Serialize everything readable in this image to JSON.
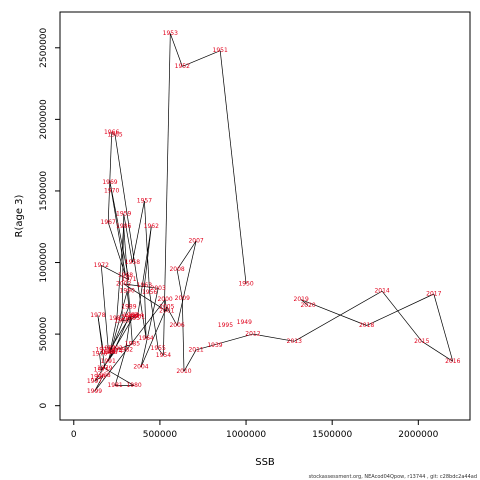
{
  "chart_data": {
    "type": "line",
    "title": "",
    "xlabel": "SSB",
    "ylabel": "R(age 3)",
    "xlim": [
      -80000,
      2300000
    ],
    "ylim": [
      -100000,
      2750000
    ],
    "x_ticks": [
      0,
      500000,
      1000000,
      1500000,
      2000000
    ],
    "x_tick_labels": [
      "0",
      "500000",
      "1000000",
      "1500000",
      "2000000"
    ],
    "y_ticks": [
      0,
      500000,
      1000000,
      1500000,
      2000000,
      2500000
    ],
    "y_tick_labels": [
      "0",
      "500000",
      "1000000",
      "1500000",
      "2000000",
      "2500000"
    ],
    "grid": false,
    "line_color": "#000000",
    "label_color": "#e0001b",
    "points": [
      {
        "year": "1950",
        "x": 1000000,
        "y": 850000
      },
      {
        "year": "1951",
        "x": 850000,
        "y": 2480000
      },
      {
        "year": "1952",
        "x": 630000,
        "y": 2370000
      },
      {
        "year": "1953",
        "x": 560000,
        "y": 2600000
      },
      {
        "year": "1954",
        "x": 520000,
        "y": 350000
      },
      {
        "year": "1955",
        "x": 490000,
        "y": 400000
      },
      {
        "year": "1956",
        "x": 440000,
        "y": 790000
      },
      {
        "year": "1957",
        "x": 410000,
        "y": 1430000
      },
      {
        "year": "1958",
        "x": 340000,
        "y": 1000000
      },
      {
        "year": "1959",
        "x": 290000,
        "y": 1340000
      },
      {
        "year": "1960",
        "x": 280000,
        "y": 590000
      },
      {
        "year": "1961",
        "x": 370000,
        "y": 620000
      },
      {
        "year": "1962",
        "x": 450000,
        "y": 1250000
      },
      {
        "year": "1963",
        "x": 410000,
        "y": 840000
      },
      {
        "year": "1964",
        "x": 420000,
        "y": 470000
      },
      {
        "year": "1965",
        "x": 240000,
        "y": 1890000
      },
      {
        "year": "1966",
        "x": 220000,
        "y": 1910000
      },
      {
        "year": "1967",
        "x": 200000,
        "y": 1280000
      },
      {
        "year": "1968",
        "x": 300000,
        "y": 910000
      },
      {
        "year": "1969",
        "x": 210000,
        "y": 1560000
      },
      {
        "year": "1970",
        "x": 220000,
        "y": 1500000
      },
      {
        "year": "1971",
        "x": 320000,
        "y": 880000
      },
      {
        "year": "1972",
        "x": 160000,
        "y": 980000
      },
      {
        "year": "1973",
        "x": 200000,
        "y": 400000
      },
      {
        "year": "1974",
        "x": 240000,
        "y": 380000
      },
      {
        "year": "1975",
        "x": 160000,
        "y": 250000
      },
      {
        "year": "1976",
        "x": 150000,
        "y": 360000
      },
      {
        "year": "1977",
        "x": 170000,
        "y": 390000
      },
      {
        "year": "1978",
        "x": 140000,
        "y": 630000
      },
      {
        "year": "1979",
        "x": 180000,
        "y": 260000
      },
      {
        "year": "1980",
        "x": 350000,
        "y": 140000
      },
      {
        "year": "1981",
        "x": 240000,
        "y": 140000
      },
      {
        "year": "1982",
        "x": 300000,
        "y": 390000
      },
      {
        "year": "1983",
        "x": 330000,
        "y": 630000
      },
      {
        "year": "1984",
        "x": 200000,
        "y": 370000
      },
      {
        "year": "1985",
        "x": 340000,
        "y": 430000
      },
      {
        "year": "1986",
        "x": 290000,
        "y": 1250000
      },
      {
        "year": "1987",
        "x": 250000,
        "y": 610000
      },
      {
        "year": "1988",
        "x": 210000,
        "y": 370000
      },
      {
        "year": "1989",
        "x": 320000,
        "y": 690000
      },
      {
        "year": "1990",
        "x": 310000,
        "y": 800000
      },
      {
        "year": "1991",
        "x": 200000,
        "y": 310000
      },
      {
        "year": "1992",
        "x": 240000,
        "y": 400000
      },
      {
        "year": "1993",
        "x": 320000,
        "y": 620000
      },
      {
        "year": "1994",
        "x": 360000,
        "y": 630000
      },
      {
        "year": "1995",
        "x": 340000,
        "y": 610000
      },
      {
        "year": "1996",
        "x": 140000,
        "y": 200000
      },
      {
        "year": "1997",
        "x": 120000,
        "y": 170000
      },
      {
        "year": "1998",
        "x": 170000,
        "y": 210000
      },
      {
        "year": "1999",
        "x": 120000,
        "y": 100000
      },
      {
        "year": "2000",
        "x": 530000,
        "y": 740000
      },
      {
        "year": "2001",
        "x": 540000,
        "y": 660000
      },
      {
        "year": "2002",
        "x": 290000,
        "y": 850000
      },
      {
        "year": "2003",
        "x": 490000,
        "y": 820000
      },
      {
        "year": "2004",
        "x": 390000,
        "y": 270000
      },
      {
        "year": "2005",
        "x": 540000,
        "y": 690000
      },
      {
        "year": "2006",
        "x": 600000,
        "y": 560000
      },
      {
        "year": "2007",
        "x": 710000,
        "y": 1150000
      },
      {
        "year": "2008",
        "x": 600000,
        "y": 950000
      },
      {
        "year": "2009",
        "x": 630000,
        "y": 750000
      },
      {
        "year": "2010",
        "x": 640000,
        "y": 240000
      },
      {
        "year": "2011",
        "x": 710000,
        "y": 390000
      },
      {
        "year": "2012",
        "x": 1040000,
        "y": 500000
      },
      {
        "year": "2013",
        "x": 1280000,
        "y": 450000
      },
      {
        "year": "2014",
        "x": 1790000,
        "y": 800000
      },
      {
        "year": "2015",
        "x": 2020000,
        "y": 450000
      },
      {
        "year": "2016",
        "x": 2200000,
        "y": 310000
      },
      {
        "year": "2017",
        "x": 2090000,
        "y": 780000
      },
      {
        "year": "2018",
        "x": 1700000,
        "y": 560000
      },
      {
        "year": "2019",
        "x": 1320000,
        "y": 740000
      },
      {
        "year": "2020",
        "x": 1360000,
        "y": 700000
      },
      {
        "year": "1939",
        "x": 820000,
        "y": 420000
      },
      {
        "year": "1949",
        "x": 990000,
        "y": 580000
      },
      {
        "year": "1995b",
        "x": 880000,
        "y": 560000
      }
    ]
  },
  "footer": {
    "credit": "stockassessment.org, NEAcod04Qpow, r13744 , git: c28bdc2a44ad"
  }
}
